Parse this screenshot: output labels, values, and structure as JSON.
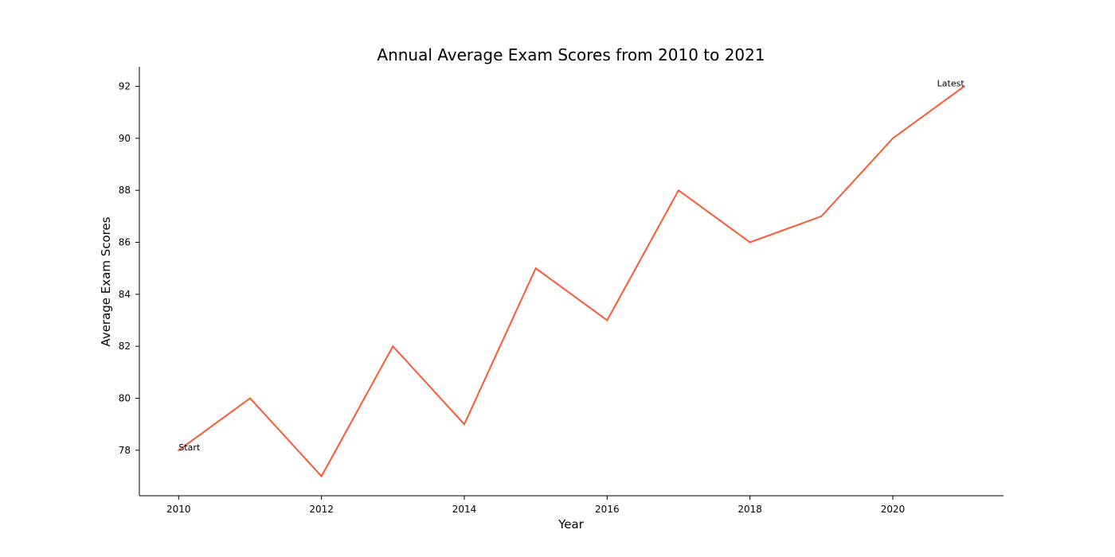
{
  "chart_data": {
    "type": "line",
    "title": "Annual Average Exam Scores from 2010 to 2021",
    "xlabel": "Year",
    "ylabel": "Average Exam Scores",
    "x": [
      2010,
      2011,
      2012,
      2013,
      2014,
      2015,
      2016,
      2017,
      2018,
      2019,
      2020,
      2021
    ],
    "series": [
      {
        "values": [
          78,
          80,
          77,
          82,
          79,
          85,
          83,
          88,
          86,
          87,
          90,
          92
        ],
        "color": "#FF5733"
      }
    ],
    "xticks": [
      2010,
      2012,
      2014,
      2016,
      2018,
      2020
    ],
    "yticks": [
      78,
      80,
      82,
      84,
      86,
      88,
      90,
      92
    ],
    "xlim": [
      2009.45,
      2021.55
    ],
    "ylim": [
      76.25,
      92.75
    ],
    "grid": false,
    "annotations": [
      {
        "text": "Start",
        "x": 2010,
        "y": 78,
        "anchor": "start"
      },
      {
        "text": "Latest",
        "x": 2021,
        "y": 92,
        "anchor": "end"
      }
    ]
  }
}
